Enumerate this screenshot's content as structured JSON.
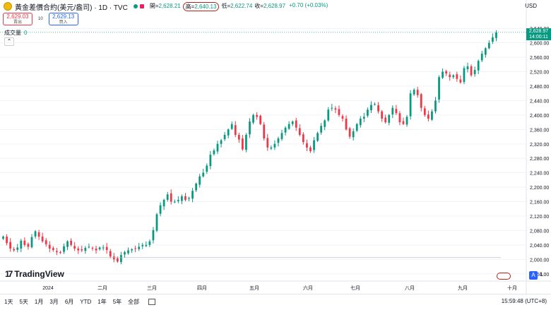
{
  "header": {
    "symbol": "黃金差價合約(美元/盎司) · 1D · TVC",
    "open_label": "開",
    "open": "2,628.21",
    "high_label": "高",
    "high": "2,640.13",
    "low_label": "低",
    "low": "2,622.74",
    "close_label": "收",
    "close": "2,628.97",
    "change": "+0.70 (+0.03%)",
    "currency": "USD"
  },
  "trade": {
    "sell_price": "2,629.03",
    "sell_label": "賣出",
    "spread": "10",
    "buy_price": "2,629.13",
    "buy_label": "買入"
  },
  "volume": {
    "label": "成交量",
    "value": "0"
  },
  "price_box": {
    "price": "2,628.97",
    "countdown": "14:00:11"
  },
  "brand": "TradingView",
  "periods": [
    "1天",
    "5天",
    "1月",
    "3月",
    "6月",
    "YTD",
    "1年",
    "5年",
    "全部"
  ],
  "time": "15:59:48 (UTC+8)",
  "scale_buttons": {
    "a": "A",
    "l": "L"
  },
  "colors": {
    "up": "#089981",
    "down": "#f23645",
    "grid": "#f0f3fa"
  },
  "chart_data": {
    "type": "candlestick",
    "ylim": [
      1940,
      2660
    ],
    "yticks": [
      1960,
      2000,
      2040,
      2080,
      2120,
      2160,
      2200,
      2240,
      2280,
      2320,
      2360,
      2400,
      2440,
      2480,
      2520,
      2560,
      2600,
      2640
    ],
    "xticks": [
      "2024",
      "二月",
      "三月",
      "四月",
      "五月",
      "六月",
      "七月",
      "八月",
      "九月",
      "十月"
    ],
    "series": [
      {
        "name": "close",
        "values": [
          2063,
          2045,
          2030,
          2025,
          2033,
          2052,
          2040,
          2035,
          2062,
          2078,
          2063,
          2050,
          2042,
          2030,
          2026,
          2020,
          2018,
          2036,
          2050,
          2040,
          2030,
          2025,
          2025,
          2032,
          2035,
          2030,
          2025,
          2033,
          2033,
          2026,
          2008,
          2000,
          1994,
          2012,
          2020,
          2025,
          2028,
          2030,
          2035,
          2040,
          2040,
          2050,
          2081,
          2125,
          2150,
          2165,
          2180,
          2160,
          2160,
          2165,
          2175,
          2165,
          2170,
          2190,
          2210,
          2230,
          2240,
          2260,
          2290,
          2302,
          2320,
          2330,
          2345,
          2360,
          2375,
          2345,
          2332,
          2305,
          2345,
          2382,
          2400,
          2395,
          2375,
          2335,
          2310,
          2310,
          2320,
          2335,
          2350,
          2365,
          2375,
          2382,
          2365,
          2345,
          2325,
          2310,
          2300,
          2330,
          2350,
          2370,
          2385,
          2415,
          2420,
          2415,
          2400,
          2390,
          2360,
          2340,
          2355,
          2375,
          2390,
          2395,
          2415,
          2428,
          2430,
          2410,
          2390,
          2380,
          2400,
          2420,
          2405,
          2380,
          2375,
          2395,
          2460,
          2470,
          2455,
          2420,
          2400,
          2390,
          2410,
          2440,
          2505,
          2520,
          2515,
          2505,
          2510,
          2500,
          2490,
          2530,
          2535,
          2510,
          2525,
          2550,
          2570,
          2585,
          2600,
          2615,
          2628.97
        ]
      }
    ]
  }
}
